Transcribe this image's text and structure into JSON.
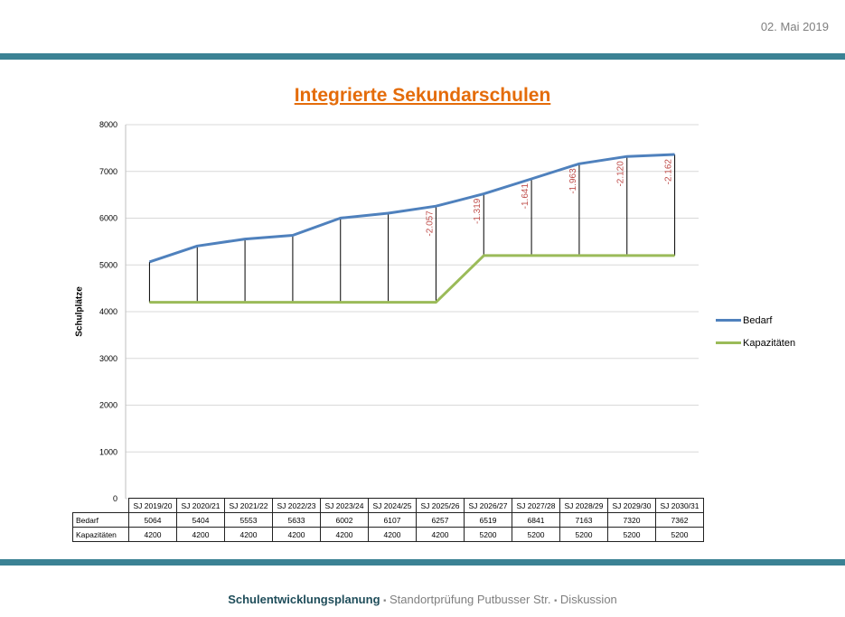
{
  "header": {
    "date": "02. Mai 2019"
  },
  "footer": {
    "main": "Schulentwicklungsplanung",
    "separator": "▪",
    "part2": "Standortprüfung Putbusser Str.",
    "part3": "Diskussion"
  },
  "colors": {
    "accent_band": "#3b8294",
    "title": "#e46c0a",
    "bedarf": "#4f81bd",
    "kapazitaeten": "#9bbb59",
    "gap_label": "#c0504d"
  },
  "chart_data": {
    "type": "line",
    "title": "Integrierte Sekundarschulen",
    "xlabel": "",
    "ylabel": "Schulplätze",
    "ylim": [
      0,
      8000
    ],
    "yticks": [
      "0",
      "1000",
      "2000",
      "3000",
      "4000",
      "5000",
      "6000",
      "7000",
      "8000"
    ],
    "grid": true,
    "legend_position": "right",
    "categories": [
      "SJ 2019/20",
      "SJ 2020/21",
      "SJ 2021/22",
      "SJ 2022/23",
      "SJ 2023/24",
      "SJ 2024/25",
      "SJ 2025/26",
      "SJ 2026/27",
      "SJ 2027/28",
      "SJ 2028/29",
      "SJ 2029/30",
      "SJ 2030/31"
    ],
    "series": [
      {
        "name": "Bedarf",
        "values": [
          5064,
          5404,
          5553,
          5633,
          6002,
          6107,
          6257,
          6519,
          6841,
          7163,
          7320,
          7362
        ]
      },
      {
        "name": "Kapazitäten",
        "values": [
          4200,
          4200,
          4200,
          4200,
          4200,
          4200,
          4200,
          5200,
          5200,
          5200,
          5200,
          5200
        ]
      }
    ],
    "annotations": [
      {
        "category": "SJ 2025/26",
        "text": "-2.057"
      },
      {
        "category": "SJ 2026/27",
        "text": "-1.319"
      },
      {
        "category": "SJ 2027/28",
        "text": "-1.641"
      },
      {
        "category": "SJ 2028/29",
        "text": "-1.963"
      },
      {
        "category": "SJ 2029/30",
        "text": "-2.120"
      },
      {
        "category": "SJ 2030/31",
        "text": "-2.162"
      }
    ]
  }
}
